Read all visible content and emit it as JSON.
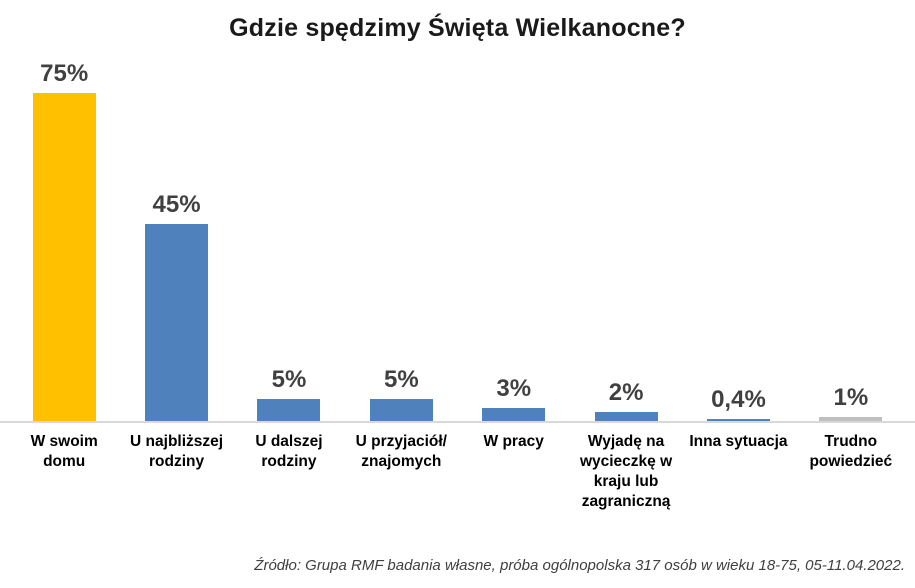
{
  "title": "Gdzie spędzimy Święta Wielkanocne?",
  "source": "Źródło: Grupa RMF badania własne, próba ogólnopolska 317 osób w wieku 18-75, 05-11.04.2022.",
  "colors": {
    "highlight_bar": "#FFC000",
    "default_bar": "#4F81BD",
    "muted_bar": "#BFBFBF",
    "value_label": "#404040",
    "category_label": "#000000",
    "axis_line": "#D9D9D9",
    "background": "#FFFFFF"
  },
  "chart_data": {
    "type": "bar",
    "title": "Gdzie spędzimy Święta Wielkanocne?",
    "categories": [
      "W swoim domu",
      "U najbliższej rodziny",
      "U dalszej rodziny",
      "U przyjaciół/ znajomych",
      "W pracy",
      "Wyjadę na wycieczkę w kraju lub zagraniczną",
      "Inna sytuacja",
      "Trudno powiedzieć"
    ],
    "values": [
      75,
      45,
      5,
      5,
      3,
      2,
      0.4,
      1
    ],
    "value_labels": [
      "75%",
      "45%",
      "5%",
      "5%",
      "3%",
      "2%",
      "0,4%",
      "1%"
    ],
    "bar_colors": [
      "#FFC000",
      "#4F81BD",
      "#4F81BD",
      "#4F81BD",
      "#4F81BD",
      "#4F81BD",
      "#4F81BD",
      "#BFBFBF"
    ],
    "xlabel": "",
    "ylabel": "",
    "ylim": [
      0,
      80
    ],
    "grid": false,
    "legend": false,
    "source": "Źródło: Grupa RMF badania własne, próba ogólnopolska 317 osób w wieku 18-75, 05-11.04.2022."
  }
}
